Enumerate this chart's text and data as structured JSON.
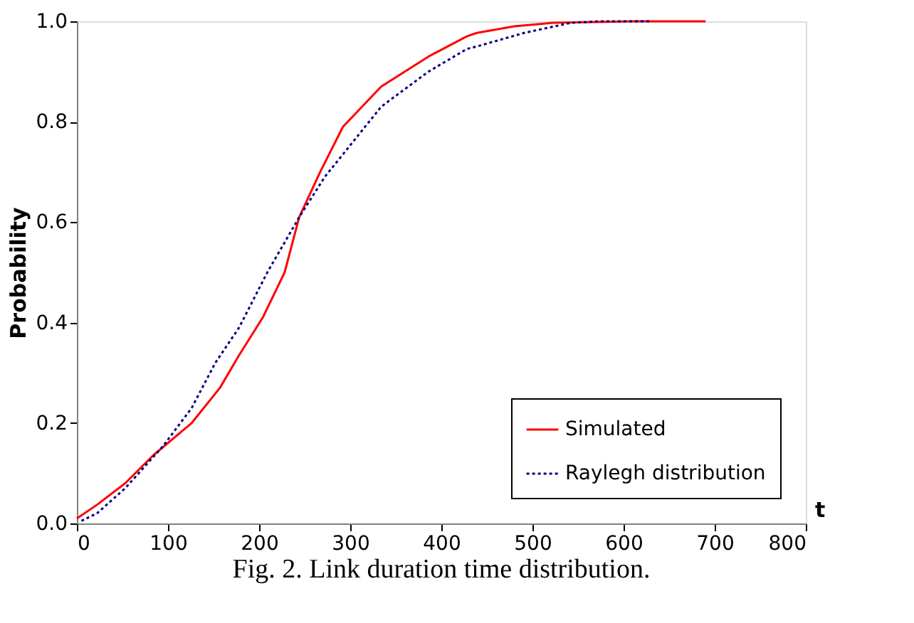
{
  "chart_data": {
    "type": "line",
    "xlabel": "t",
    "ylabel": "Probability",
    "xlim": [
      0,
      800
    ],
    "xticks": [
      0,
      100,
      200,
      300,
      400,
      500,
      600,
      700,
      800
    ],
    "ylim": [
      0,
      1
    ],
    "yticks": [
      {
        "value": 0,
        "label": "0.0"
      },
      0.2,
      0.4,
      0.6,
      0.8,
      {
        "value": 1,
        "label": "1.0"
      }
    ],
    "grid": false,
    "legend": "bottom right",
    "marker": "none",
    "series": [
      {
        "name": "Simulated",
        "color": "#ff0000",
        "line_style": "solid",
        "x": [
          0,
          22,
          53,
          84,
          126,
          157,
          178,
          204,
          228,
          244,
          267,
          292,
          334,
          386,
          428,
          439,
          480,
          522,
          611,
          690
        ],
        "values": [
          0.01,
          0.037,
          0.08,
          0.136,
          0.2,
          0.27,
          0.335,
          0.41,
          0.5,
          0.61,
          0.7,
          0.79,
          0.87,
          0.93,
          0.97,
          0.977,
          0.99,
          0.997,
          1.0,
          1.0
        ]
      },
      {
        "name": "Raylegh distribution",
        "color": "#000080",
        "line_style": "dotted",
        "x": [
          5,
          22,
          53,
          95,
          126,
          152,
          178,
          209,
          244,
          272,
          303,
          334,
          345,
          386,
          428,
          439,
          491,
          542,
          573,
          631
        ],
        "values": [
          0.005,
          0.02,
          0.07,
          0.155,
          0.23,
          0.32,
          0.39,
          0.5,
          0.61,
          0.69,
          0.76,
          0.83,
          0.845,
          0.9,
          0.945,
          0.95,
          0.977,
          0.997,
          1.0,
          1.0
        ]
      }
    ],
    "annotations": [
      "Fig. 2. Link duration time distribution."
    ]
  }
}
